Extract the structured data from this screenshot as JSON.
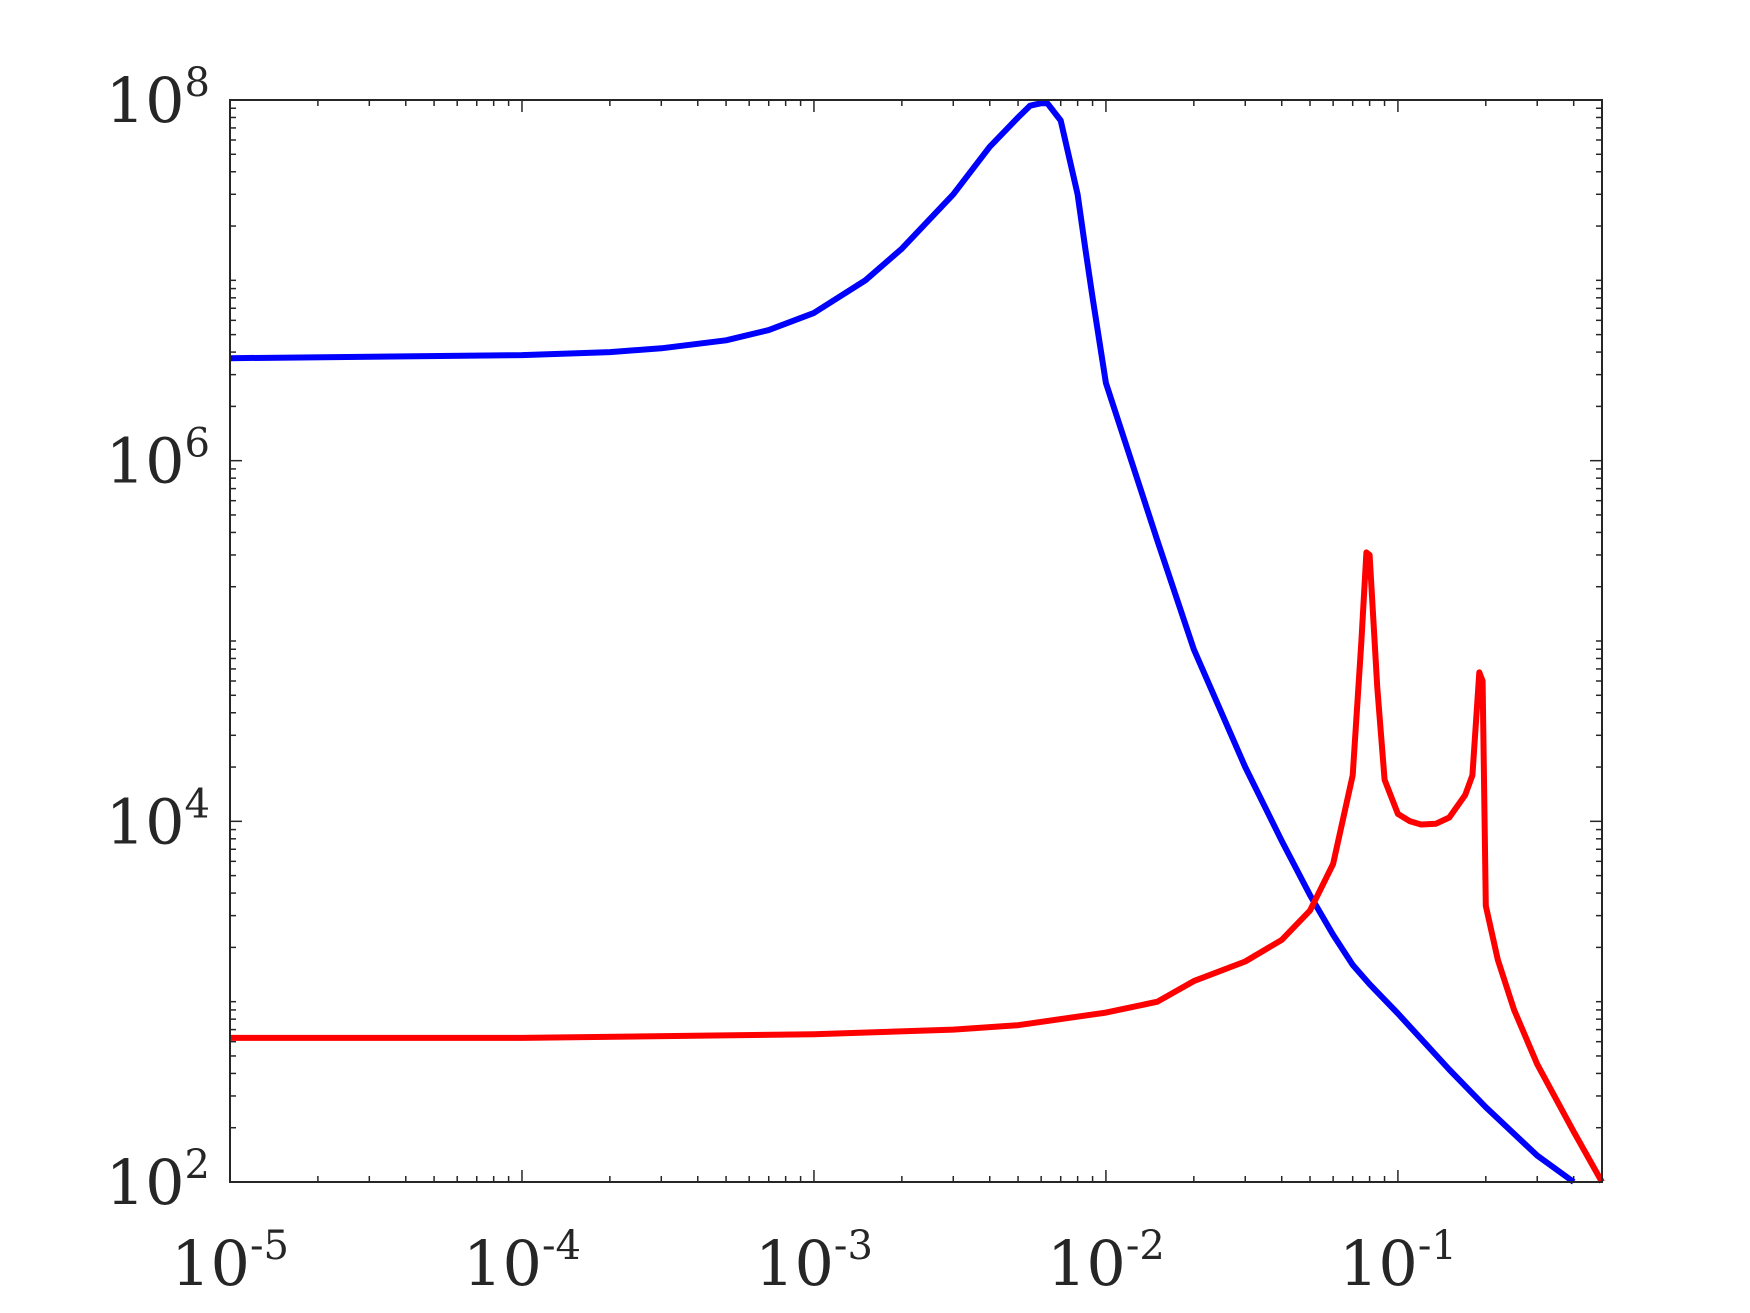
{
  "chart_data": {
    "type": "line",
    "title": "",
    "xlabel": "",
    "ylabel": "",
    "xscale": "log",
    "yscale": "log",
    "xlim": [
      1e-05,
      0.5
    ],
    "ylim": [
      100,
      100000000
    ],
    "grid": false,
    "x_ticks": [
      {
        "value": 1e-05,
        "base": "10",
        "exp": "-5"
      },
      {
        "value": 0.0001,
        "base": "10",
        "exp": "-4"
      },
      {
        "value": 0.001,
        "base": "10",
        "exp": "-3"
      },
      {
        "value": 0.01,
        "base": "10",
        "exp": "-2"
      },
      {
        "value": 0.1,
        "base": "10",
        "exp": "-1"
      }
    ],
    "y_ticks": [
      {
        "value": 100,
        "base": "10",
        "exp": "2"
      },
      {
        "value": 10000,
        "base": "10",
        "exp": "4"
      },
      {
        "value": 1000000,
        "base": "10",
        "exp": "6"
      },
      {
        "value": 100000000,
        "base": "10",
        "exp": "8"
      }
    ],
    "series": [
      {
        "color": "#0000ff",
        "points": [
          [
            1e-05,
            3700000
          ],
          [
            0.0001,
            3850000
          ],
          [
            0.0002,
            4000000
          ],
          [
            0.0003,
            4200000
          ],
          [
            0.0005,
            4650000
          ],
          [
            0.0007,
            5300000
          ],
          [
            0.001,
            6600000
          ],
          [
            0.0015,
            10000000
          ],
          [
            0.002,
            15000000
          ],
          [
            0.003,
            30000000
          ],
          [
            0.004,
            55000000
          ],
          [
            0.005,
            80000000
          ],
          [
            0.0055,
            93000000
          ],
          [
            0.006,
            96000000
          ],
          [
            0.0063,
            96000000
          ],
          [
            0.007,
            77000000
          ],
          [
            0.008,
            30000000
          ],
          [
            0.0085,
            15000000
          ],
          [
            0.009,
            8000000
          ],
          [
            0.01,
            2700000
          ],
          [
            0.015,
            360000
          ],
          [
            0.02,
            90000
          ],
          [
            0.03,
            20000
          ],
          [
            0.04,
            7800
          ],
          [
            0.05,
            3900
          ],
          [
            0.06,
            2350
          ],
          [
            0.07,
            1600
          ],
          [
            0.08,
            1250
          ],
          [
            0.1,
            860
          ],
          [
            0.15,
            420
          ],
          [
            0.2,
            260
          ],
          [
            0.3,
            140
          ],
          [
            0.4,
            100
          ]
        ]
      },
      {
        "color": "#ff0000",
        "points": [
          [
            1e-05,
            630
          ],
          [
            0.0001,
            630
          ],
          [
            0.001,
            660
          ],
          [
            0.003,
            700
          ],
          [
            0.005,
            740
          ],
          [
            0.01,
            870
          ],
          [
            0.015,
            1000
          ],
          [
            0.02,
            1300
          ],
          [
            0.03,
            1670
          ],
          [
            0.04,
            2200
          ],
          [
            0.05,
            3200
          ],
          [
            0.06,
            5800
          ],
          [
            0.07,
            18000
          ],
          [
            0.075,
            100000
          ],
          [
            0.078,
            310000
          ],
          [
            0.08,
            300000
          ],
          [
            0.085,
            55000
          ],
          [
            0.09,
            17000
          ],
          [
            0.1,
            11000
          ],
          [
            0.11,
            10000
          ],
          [
            0.12,
            9600
          ],
          [
            0.135,
            9700
          ],
          [
            0.15,
            10500
          ],
          [
            0.17,
            14000
          ],
          [
            0.18,
            18000
          ],
          [
            0.19,
            67000
          ],
          [
            0.195,
            60000
          ],
          [
            0.2,
            3400
          ],
          [
            0.22,
            1700
          ],
          [
            0.25,
            900
          ],
          [
            0.3,
            450
          ],
          [
            0.4,
            190
          ],
          [
            0.5,
            100
          ]
        ]
      }
    ]
  }
}
